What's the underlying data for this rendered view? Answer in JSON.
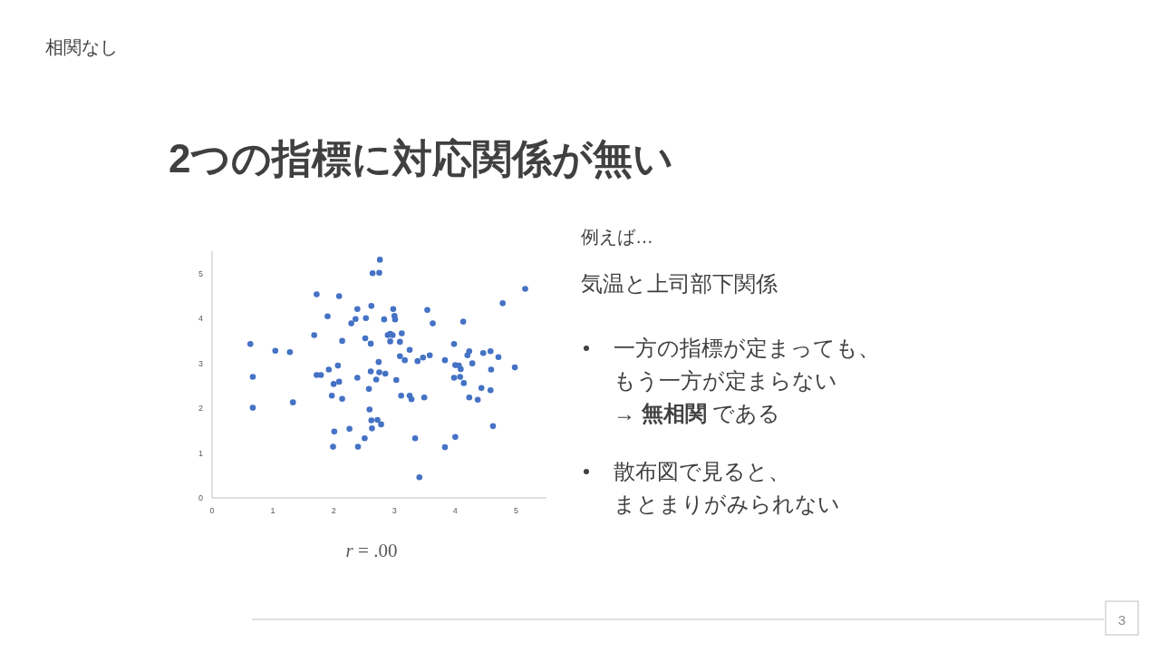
{
  "chart_data": {
    "type": "scatter",
    "title": "2つの指標に対応関係が無い",
    "annotations": [
      "相関なし",
      "例えば…",
      "気温と上司部下関係",
      "一方の指標が定まっても、",
      "もう一方が定まらない",
      "→ **無相関** である",
      "散布図で見ると、",
      "まとまりがみられない",
      "*r* =  .00",
      "3"
    ],
    "xlim": [
      0,
      5.5
    ],
    "ylim": [
      0,
      5.5
    ],
    "xticks": [
      0,
      1,
      2,
      3,
      4,
      5
    ],
    "yticks": [
      0,
      1,
      2,
      3,
      4,
      5
    ],
    "grid": false,
    "marker": "circle",
    "series": [
      {
        "color": "#4472c4",
        "x": [
          0.63,
          0.67,
          0.67,
          1.04,
          1.28,
          1.33,
          1.68,
          1.72,
          1.72,
          1.79,
          1.9,
          1.92,
          1.97,
          1.99,
          2.01,
          2.0,
          2.07,
          2.09,
          2.09,
          2.14,
          2.14,
          2.26,
          2.29,
          2.36,
          2.39,
          2.39,
          2.4,
          2.51,
          2.52,
          2.53,
          2.58,
          2.59,
          2.61,
          2.61,
          2.62,
          2.62,
          2.63,
          2.64,
          2.7,
          2.72,
          2.74,
          2.75,
          2.76,
          2.75,
          2.78,
          2.83,
          2.85,
          2.89,
          2.93,
          2.93,
          2.97,
          2.98,
          3.0,
          3.01,
          3.03,
          3.09,
          3.09,
          3.12,
          3.11,
          3.17,
          3.25,
          3.25,
          3.28,
          3.34,
          3.38,
          3.41,
          3.47,
          3.49,
          3.54,
          3.58,
          3.63,
          3.83,
          3.83,
          3.98,
          3.98,
          4.0,
          4.0,
          4.06,
          4.08,
          4.09,
          4.13,
          4.14,
          4.2,
          4.23,
          4.23,
          4.28,
          4.37,
          4.43,
          4.46,
          4.58,
          4.59,
          4.58,
          4.62,
          4.71,
          4.78,
          4.98,
          5.15
        ],
        "values": [
          3.43,
          2.7,
          2.01,
          3.28,
          3.25,
          2.13,
          3.63,
          4.54,
          2.74,
          2.74,
          4.05,
          2.86,
          2.28,
          1.14,
          1.48,
          2.54,
          2.95,
          2.59,
          4.5,
          3.5,
          2.21,
          1.54,
          3.89,
          3.99,
          4.21,
          2.68,
          1.14,
          1.33,
          3.56,
          4.01,
          2.43,
          1.97,
          3.44,
          2.82,
          4.28,
          1.73,
          1.55,
          5.01,
          2.64,
          1.74,
          3.03,
          5.02,
          5.31,
          2.8,
          1.64,
          3.98,
          2.77,
          3.63,
          3.49,
          3.66,
          3.63,
          4.21,
          4.06,
          3.98,
          2.63,
          3.16,
          3.48,
          3.67,
          2.28,
          3.07,
          3.3,
          2.28,
          2.2,
          1.33,
          3.05,
          0.46,
          3.13,
          2.24,
          4.19,
          3.18,
          3.89,
          3.07,
          1.13,
          3.43,
          2.68,
          1.36,
          2.96,
          2.95,
          2.7,
          2.87,
          3.93,
          2.56,
          3.18,
          3.27,
          2.24,
          3.0,
          2.19,
          2.45,
          3.23,
          3.27,
          2.86,
          2.4,
          1.6,
          3.14,
          4.34,
          2.91,
          4.66
        ]
      }
    ]
  }
}
